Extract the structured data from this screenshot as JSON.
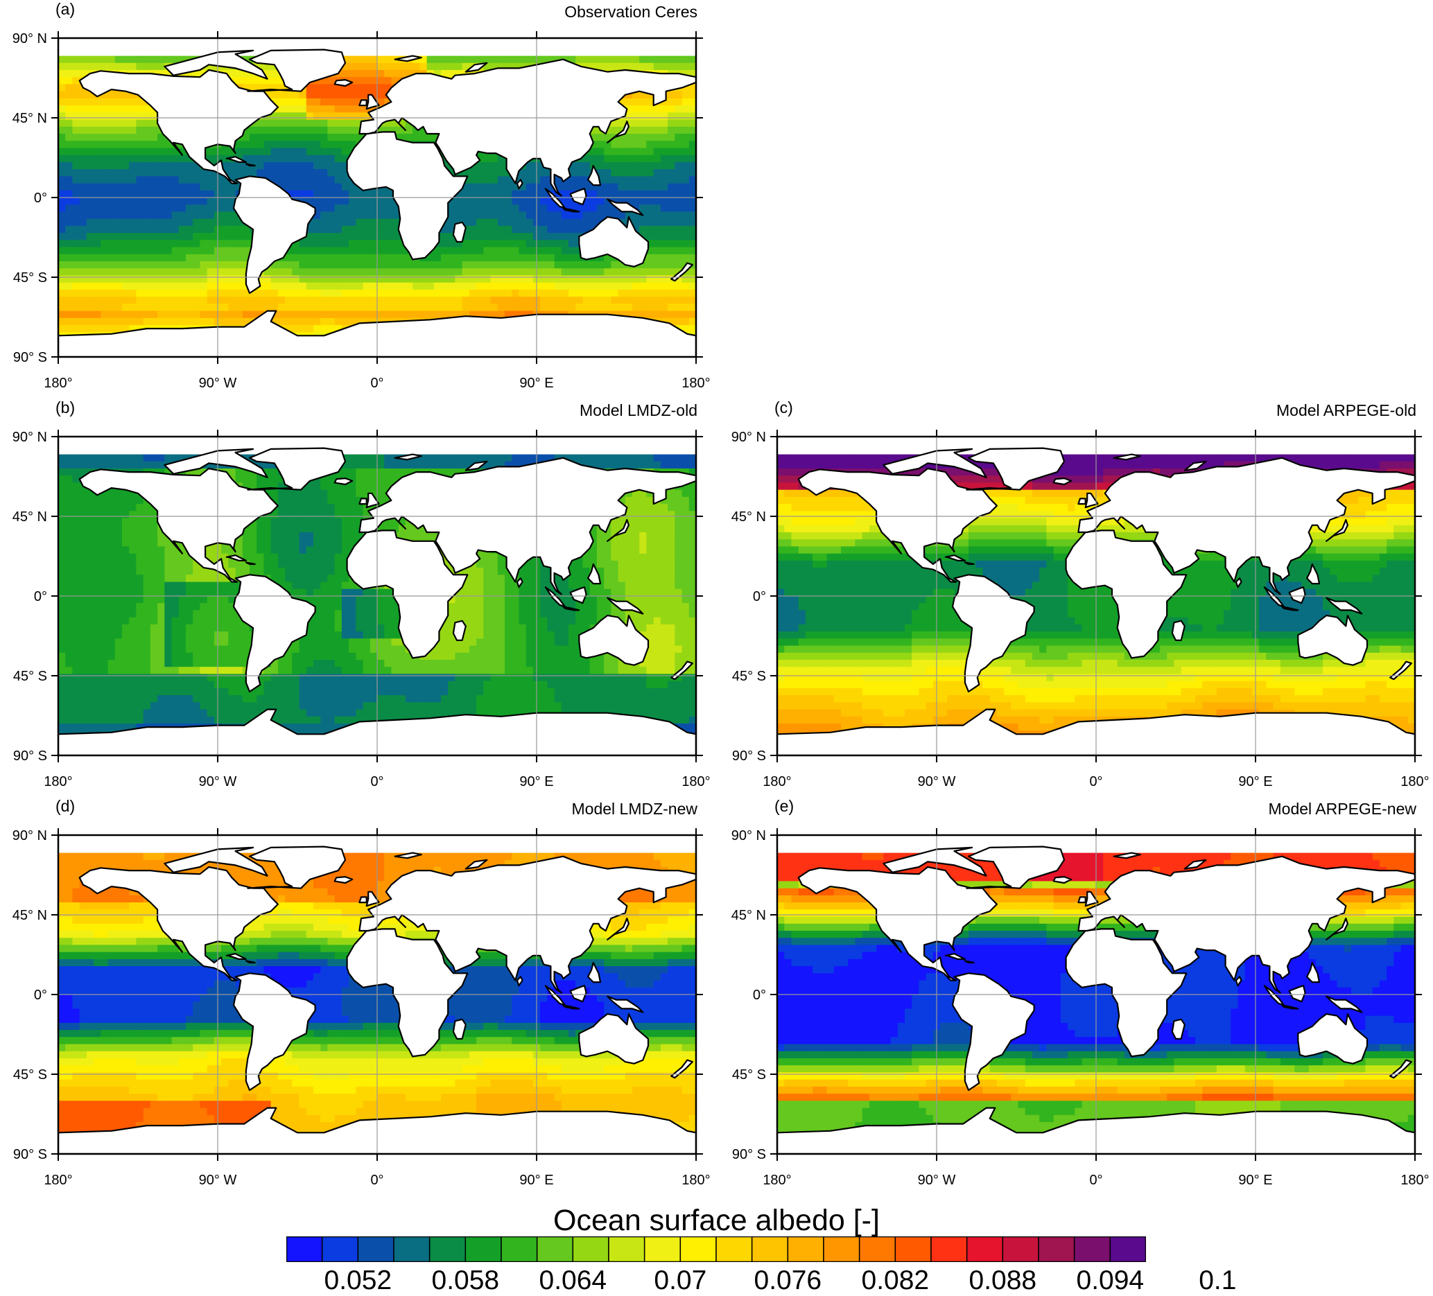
{
  "panels": [
    {
      "id": "a",
      "label": "(a)",
      "title": "Observation Ceres",
      "scheme": "obs"
    },
    {
      "id": "b",
      "label": "(b)",
      "title": "Model LMDZ-old",
      "scheme": "lmdz_old"
    },
    {
      "id": "c",
      "label": "(c)",
      "title": "Model ARPEGE-old",
      "scheme": "arpege_old"
    },
    {
      "id": "d",
      "label": "(d)",
      "title": "Model LMDZ-new",
      "scheme": "lmdz_new"
    },
    {
      "id": "e",
      "label": "(e)",
      "title": "Model ARPEGE-new",
      "scheme": "arpege_new"
    }
  ],
  "axes": {
    "lat_ticks": [
      {
        "value": 90,
        "label": "90° N"
      },
      {
        "value": 45,
        "label": "45° N"
      },
      {
        "value": 0,
        "label": "0°"
      },
      {
        "value": -45,
        "label": "45° S"
      },
      {
        "value": -90,
        "label": "90° S"
      }
    ],
    "lon_ticks": [
      {
        "value": -180,
        "label": "180°"
      },
      {
        "value": -90,
        "label": "90° W"
      },
      {
        "value": 0,
        "label": "0°"
      },
      {
        "value": 90,
        "label": "90° E"
      },
      {
        "value": 180,
        "label": "180°"
      }
    ]
  },
  "colorbar": {
    "title": "Ocean surface albedo [-]",
    "colors": [
      "#1414ff",
      "#0a3ce1",
      "#0a50aa",
      "#0a6e82",
      "#0a8c46",
      "#14a028",
      "#32b41e",
      "#64c81e",
      "#96d714",
      "#c8e614",
      "#f0f014",
      "#ffef00",
      "#ffd700",
      "#ffc400",
      "#ffb000",
      "#ff9600",
      "#ff7800",
      "#ff5a00",
      "#ff3214",
      "#e6142d",
      "#c8143c",
      "#a01450",
      "#7a0f6e",
      "#5a0a8c"
    ],
    "tick_labels": [
      "0.052",
      "0.058",
      "0.064",
      "0.07",
      "0.076",
      "0.082",
      "0.088",
      "0.094",
      "0.1"
    ]
  }
}
